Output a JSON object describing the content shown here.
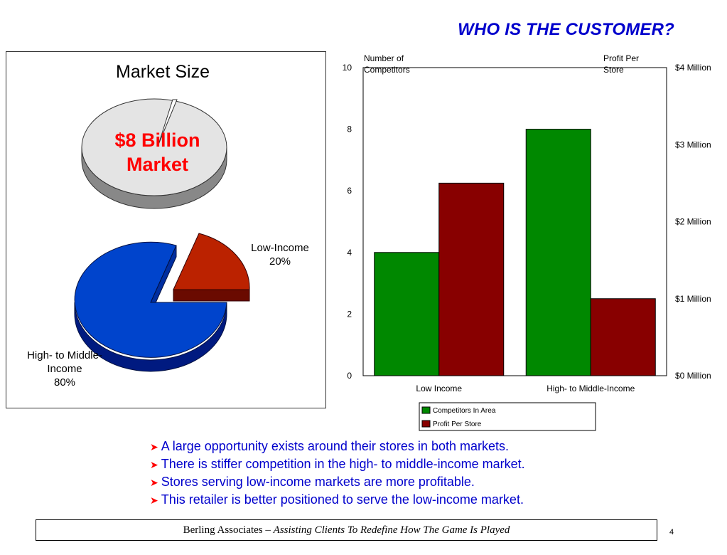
{
  "slide": {
    "title": "WHO IS THE CUSTOMER?",
    "page_number": "4"
  },
  "market_pie": {
    "title": "Market Size",
    "center_label_line1": "$8 Billion",
    "center_label_line2": "Market",
    "segments": [
      {
        "label_line1": "Low-Income",
        "label_line2": "20%",
        "value": 20,
        "color": "#bb2200"
      },
      {
        "label_line1": "High- to Middle-",
        "label_line2": "Income",
        "label_line3": "80%",
        "value": 80,
        "color": "#0044cc"
      }
    ],
    "total_pie_color": "#e4e4e4"
  },
  "chart_data": {
    "type": "bar",
    "categories": [
      "Low Income",
      "High- to Middle-Income"
    ],
    "series": [
      {
        "name": "Competitors In Area",
        "values": [
          4,
          8
        ],
        "color": "#008800",
        "axis": "left"
      },
      {
        "name": "Profit Per Store",
        "values": [
          2.5,
          1.0
        ],
        "color": "#880000",
        "axis": "right"
      }
    ],
    "ylabel_left": "Number of Competitors",
    "ylabel_right": "Profit Per Store",
    "ylim_left": [
      0,
      10
    ],
    "yticks_left": [
      "0",
      "2",
      "4",
      "6",
      "8",
      "10"
    ],
    "ylim_right": [
      0,
      4
    ],
    "yticks_right": [
      "$0 Million",
      "$1 Million",
      "$2 Million",
      "$3 Million",
      "$4 Million"
    ],
    "legend_position": "bottom",
    "grid": false
  },
  "bullets": [
    "A large opportunity exists around their stores in both markets.",
    "There is stiffer competition in the high- to middle-income market.",
    "Stores serving low-income markets are more profitable.",
    "This retailer is better positioned to serve the low-income market."
  ],
  "footer": {
    "company": "Berling Associates",
    "dash": " – ",
    "tagline": "Assisting Clients To Redefine How The Game Is Played"
  }
}
